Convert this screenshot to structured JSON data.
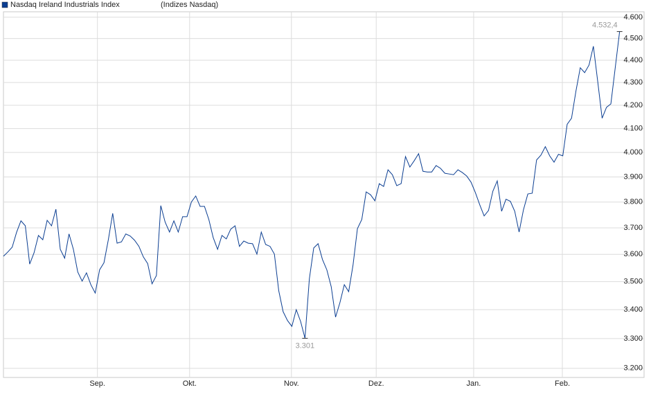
{
  "chart_data": {
    "type": "line",
    "title": "(Indizes Nasdaq)",
    "series": [
      {
        "name": "Nasdaq Ireland Industrials Index",
        "color": "#0a3d91",
        "values": [
          3593,
          3609,
          3627,
          3683,
          3727,
          3708,
          3564,
          3606,
          3671,
          3655,
          3729,
          3708,
          3772,
          3619,
          3586,
          3677,
          3619,
          3535,
          3502,
          3532,
          3489,
          3459,
          3543,
          3569,
          3655,
          3756,
          3642,
          3647,
          3677,
          3669,
          3653,
          3630,
          3591,
          3566,
          3492,
          3522,
          3786,
          3722,
          3684,
          3727,
          3684,
          3743,
          3743,
          3800,
          3824,
          3783,
          3783,
          3732,
          3663,
          3619,
          3671,
          3658,
          3695,
          3708,
          3630,
          3650,
          3642,
          3640,
          3601,
          3684,
          3637,
          3630,
          3601,
          3467,
          3393,
          3362,
          3342,
          3400,
          3359,
          3301,
          3510,
          3624,
          3640,
          3581,
          3543,
          3482,
          3374,
          3425,
          3489,
          3464,
          3561,
          3697,
          3732,
          3840,
          3829,
          3805,
          3873,
          3862,
          3929,
          3909,
          3865,
          3873,
          3983,
          3940,
          3966,
          3995,
          3923,
          3920,
          3920,
          3946,
          3935,
          3915,
          3912,
          3909,
          3929,
          3918,
          3904,
          3879,
          3837,
          3789,
          3746,
          3767,
          3843,
          3884,
          3764,
          3811,
          3803,
          3764,
          3684,
          3770,
          3832,
          3835,
          3969,
          3989,
          4024,
          3986,
          3960,
          3992,
          3986,
          4118,
          4144,
          4261,
          4366,
          4344,
          4378,
          4464,
          4303,
          4144,
          4191,
          4206,
          4366,
          4532.4
        ],
        "value_labels": [
          null,
          null,
          null,
          null,
          null,
          null,
          null,
          null,
          null,
          null,
          null,
          null,
          null,
          null,
          null,
          null,
          null,
          null,
          null,
          null,
          null,
          null,
          null,
          null,
          null,
          null,
          null,
          null,
          null,
          null,
          null,
          null,
          null,
          null,
          null,
          null,
          null,
          null,
          null,
          null,
          null,
          null,
          null,
          null,
          null,
          null,
          null,
          null,
          null,
          null,
          null,
          null,
          null,
          null,
          null,
          null,
          null,
          null,
          null,
          null,
          null,
          null,
          null,
          null,
          null,
          null,
          null,
          null,
          null,
          "3.301",
          null,
          null,
          null,
          null,
          null,
          null,
          null,
          null,
          null,
          null,
          null,
          null,
          null,
          null,
          null,
          null,
          null,
          null,
          null,
          null,
          null,
          null,
          null,
          null,
          null,
          null,
          null,
          null,
          null,
          null,
          null,
          null,
          null,
          null,
          null,
          null,
          null,
          null,
          null,
          null,
          null,
          null,
          null,
          null,
          null,
          null,
          null,
          null,
          null,
          null,
          null,
          null,
          null,
          null,
          null,
          null,
          null,
          null,
          null,
          null,
          null,
          null,
          null,
          null,
          null,
          null,
          null,
          null,
          null,
          null,
          null,
          "4.532,4"
        ]
      }
    ],
    "xlim": [
      0,
      146.6
    ],
    "xticks": [
      {
        "value": 21.5,
        "label": "Sep."
      },
      {
        "value": 42.6,
        "label": "Okt."
      },
      {
        "value": 65.9,
        "label": "Nov."
      },
      {
        "value": 85.3,
        "label": "Dez."
      },
      {
        "value": 107.6,
        "label": "Jan."
      },
      {
        "value": 127.9,
        "label": "Feb."
      }
    ],
    "ylim": [
      3170,
      4626
    ],
    "yticks": [
      {
        "value": 3200,
        "label": "3.200"
      },
      {
        "value": 3300,
        "label": "3.300"
      },
      {
        "value": 3400,
        "label": "3.400"
      },
      {
        "value": 3500,
        "label": "3.500"
      },
      {
        "value": 3600,
        "label": "3.600"
      },
      {
        "value": 3700,
        "label": "3.700"
      },
      {
        "value": 3800,
        "label": "3.800"
      },
      {
        "value": 3900,
        "label": "3.900"
      },
      {
        "value": 4000,
        "label": "4.000"
      },
      {
        "value": 4100,
        "label": "4.100"
      },
      {
        "value": 4200,
        "label": "4.200"
      },
      {
        "value": 4300,
        "label": "4.300"
      },
      {
        "value": 4400,
        "label": "4.400"
      },
      {
        "value": 4500,
        "label": "4.500"
      },
      {
        "value": 4600,
        "label": "4.600"
      }
    ],
    "log_scale": true,
    "grid": true
  }
}
